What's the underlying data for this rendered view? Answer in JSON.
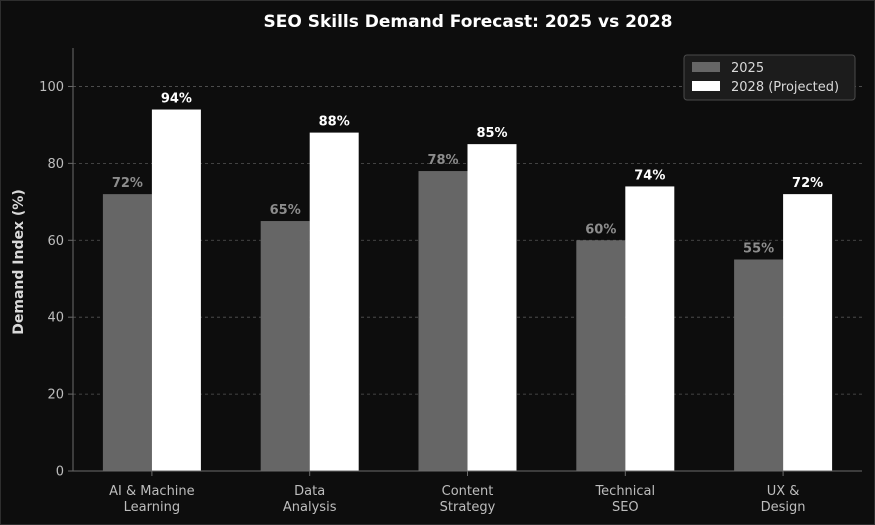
{
  "chart_data": {
    "type": "bar",
    "title": "SEO Skills Demand Forecast: 2025 vs 2028",
    "xlabel": "",
    "ylabel": "Demand Index (%)",
    "ylim": [
      0,
      110
    ],
    "yticks": [
      0,
      20,
      40,
      60,
      80,
      100
    ],
    "grid": "y dashed",
    "legend_position": "top-right",
    "categories": [
      [
        "AI & Machine",
        "Learning"
      ],
      [
        "Data",
        "Analysis"
      ],
      [
        "Content",
        "Strategy"
      ],
      [
        "Technical",
        "SEO"
      ],
      [
        "UX &",
        "Design"
      ]
    ],
    "series": [
      {
        "name": "2025",
        "values": [
          72,
          65,
          78,
          60,
          55
        ],
        "labels": [
          "72%",
          "65%",
          "78%",
          "60%",
          "55%"
        ],
        "color": "#666666",
        "label_color": "#8c8c8c"
      },
      {
        "name": "2028 (Projected)",
        "values": [
          94,
          88,
          85,
          74,
          72
        ],
        "labels": [
          "94%",
          "88%",
          "85%",
          "74%",
          "72%"
        ],
        "color": "#ffffff",
        "label_color": "#ffffff"
      }
    ]
  },
  "colors": {
    "background": "#0d0d0d",
    "axis": "#6a6a6a",
    "grid": "#555555"
  }
}
